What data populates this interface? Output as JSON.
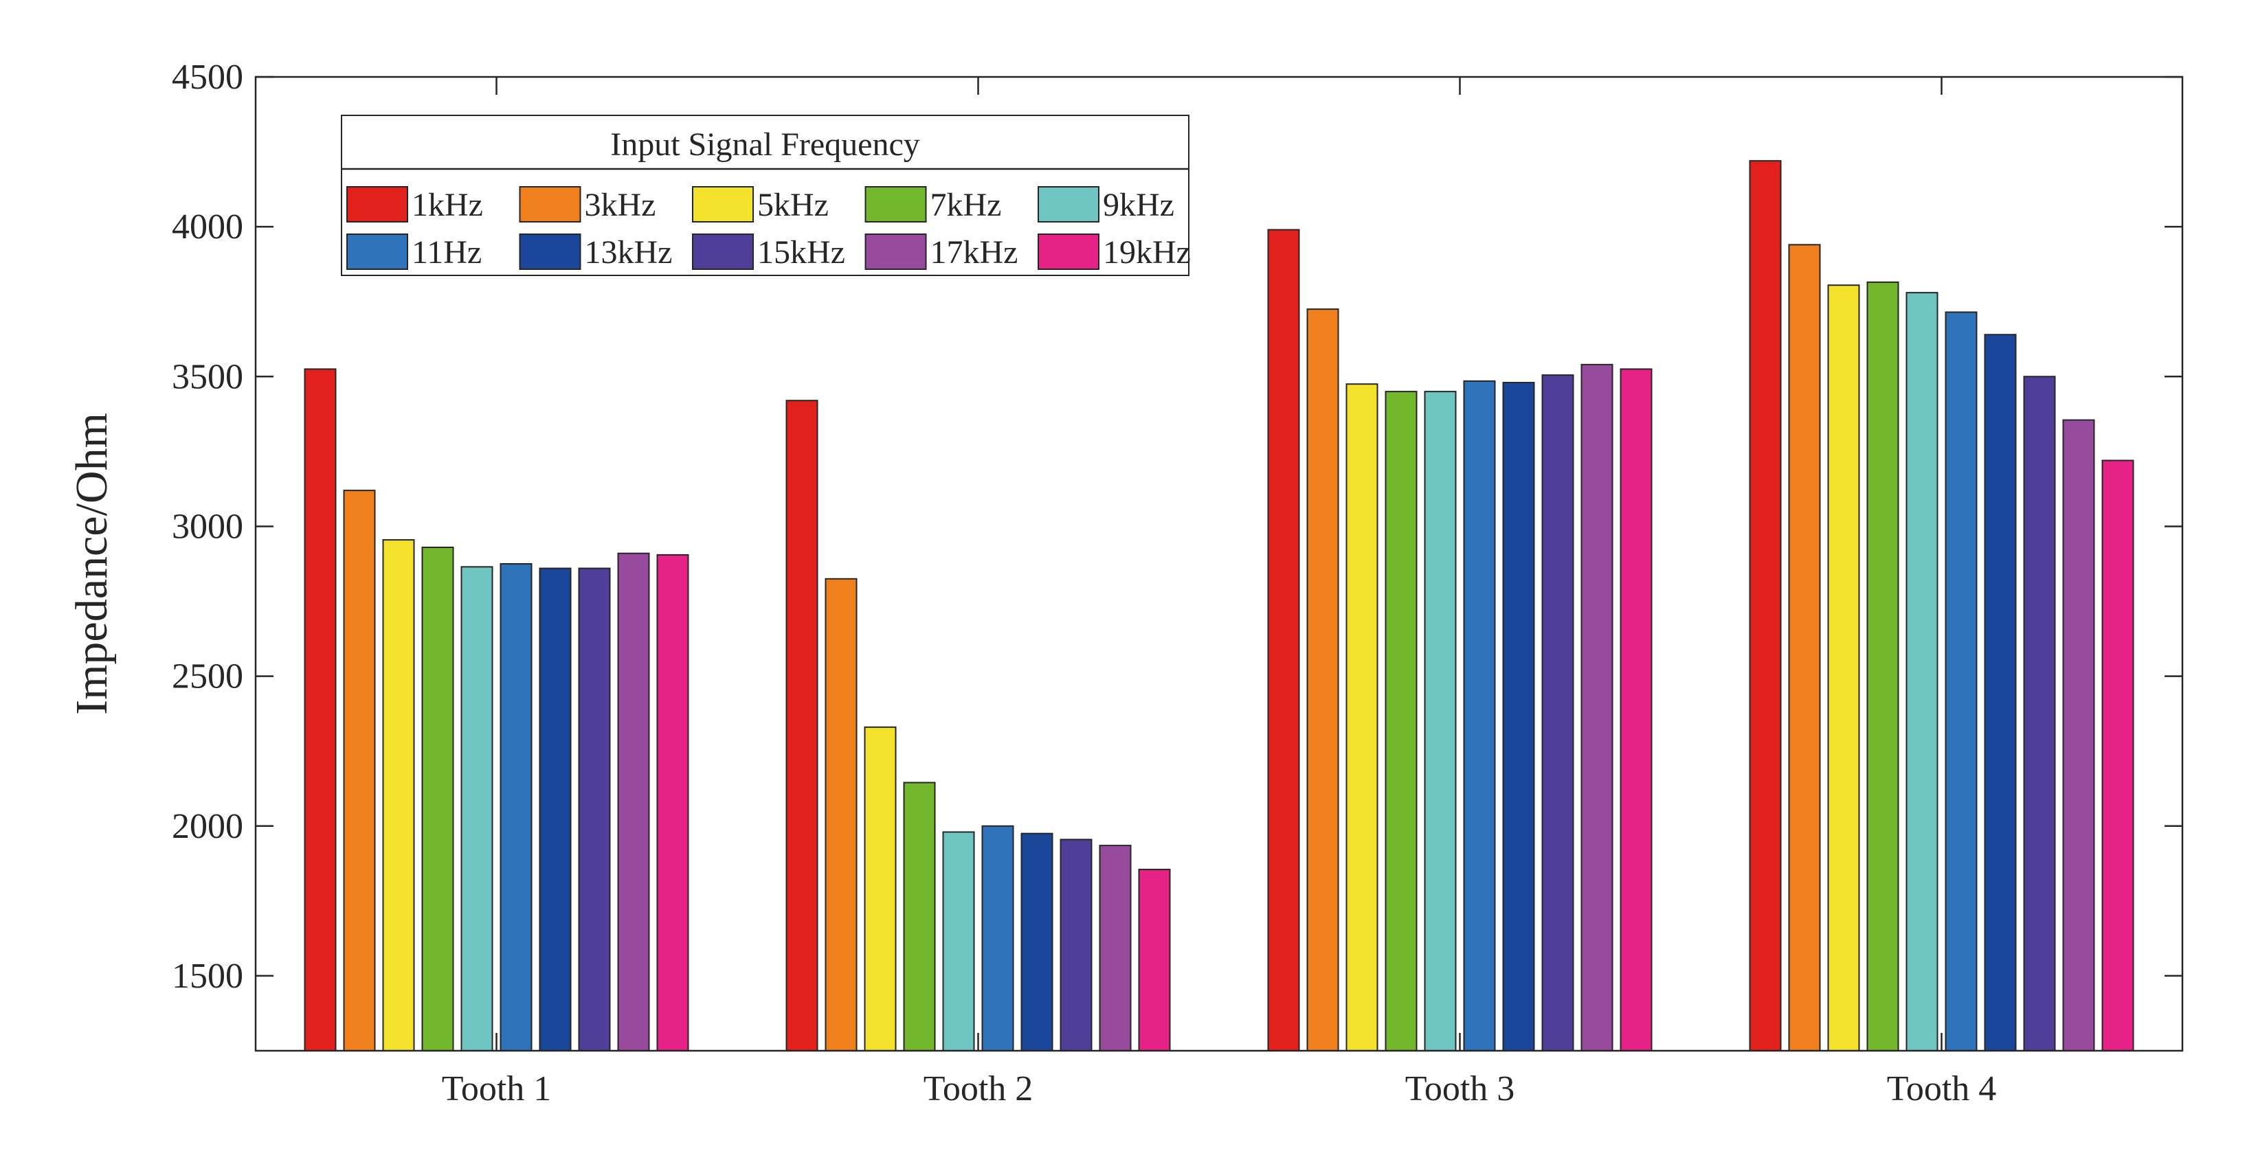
{
  "chart_data": {
    "type": "bar",
    "title": "",
    "xlabel": "",
    "ylabel": "Impedance/Ohm",
    "ylim": [
      1250,
      4500
    ],
    "yticks": [
      1500,
      2000,
      2500,
      3000,
      3500,
      4000,
      4500
    ],
    "categories": [
      "Tooth 1",
      "Tooth 2",
      "Tooth 3",
      "Tooth 4"
    ],
    "legend_title": "Input Signal Frequency",
    "legend_position": "top-left",
    "series": [
      {
        "name": "1kHz",
        "color": "#e3211c",
        "values": [
          3525,
          3420,
          3990,
          4220
        ]
      },
      {
        "name": "3kHz",
        "color": "#f07f1e",
        "values": [
          3120,
          2825,
          3725,
          3940
        ]
      },
      {
        "name": "5kHz",
        "color": "#f4e12b",
        "values": [
          2955,
          2330,
          3475,
          3805
        ]
      },
      {
        "name": "7kHz",
        "color": "#72b72c",
        "values": [
          2930,
          2145,
          3450,
          3815
        ]
      },
      {
        "name": "9kHz",
        "color": "#6fc5c1",
        "values": [
          2865,
          1980,
          3450,
          3780
        ]
      },
      {
        "name": "11Hz",
        "color": "#2f73bb",
        "values": [
          2875,
          2000,
          3485,
          3715
        ]
      },
      {
        "name": "13kHz",
        "color": "#1b479b",
        "values": [
          2860,
          1975,
          3480,
          3640
        ]
      },
      {
        "name": "15kHz",
        "color": "#4f3f98",
        "values": [
          2860,
          1955,
          3505,
          3500
        ]
      },
      {
        "name": "17kHz",
        "color": "#984b9c",
        "values": [
          2910,
          1935,
          3540,
          3355
        ]
      },
      {
        "name": "19kHz",
        "color": "#e62287",
        "values": [
          2905,
          1855,
          3525,
          3220
        ]
      }
    ]
  }
}
